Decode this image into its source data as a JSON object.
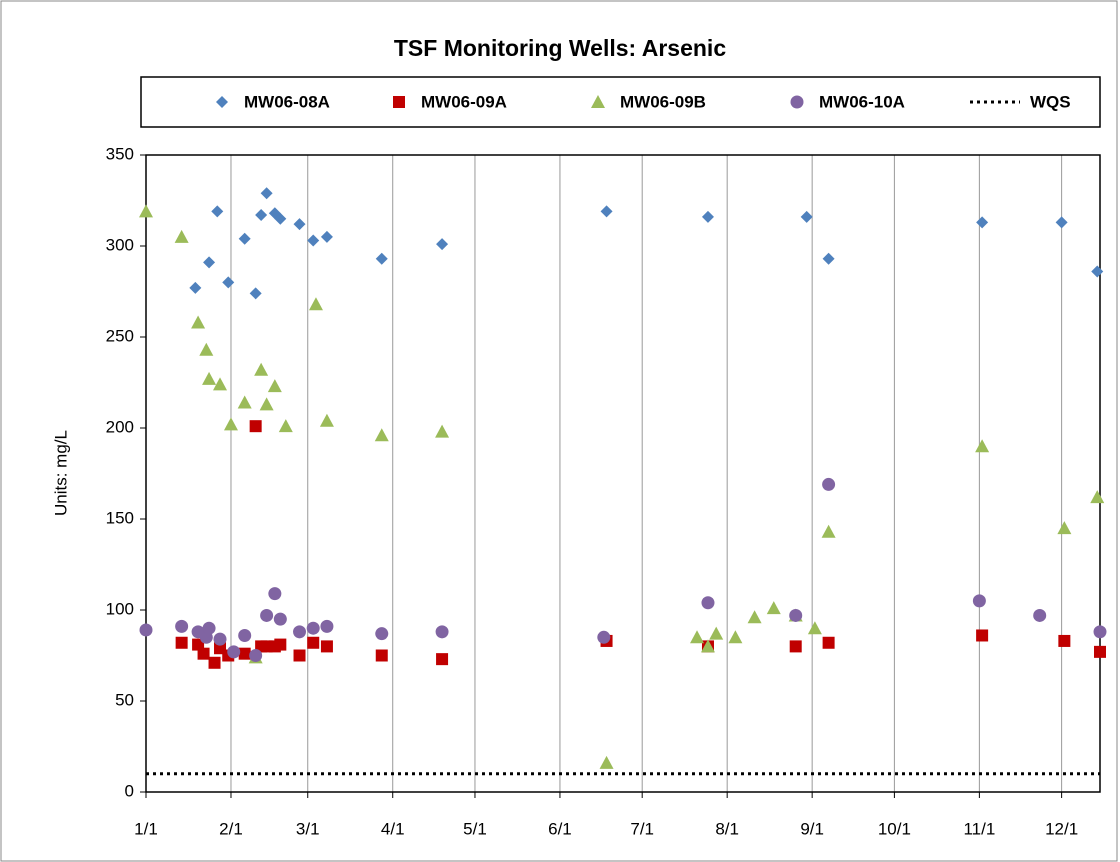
{
  "chart_data": {
    "type": "scatter",
    "title": "TSF Monitoring Wells: Arsenic",
    "y_label": "Units: mg/L",
    "xlim": [
      0,
      348
    ],
    "xticks": [
      {
        "value": 0,
        "label": "1/1"
      },
      {
        "value": 31,
        "label": "2/1"
      },
      {
        "value": 59,
        "label": "3/1"
      },
      {
        "value": 90,
        "label": "4/1"
      },
      {
        "value": 120,
        "label": "5/1"
      },
      {
        "value": 151,
        "label": "6/1"
      },
      {
        "value": 181,
        "label": "7/1"
      },
      {
        "value": 212,
        "label": "8/1"
      },
      {
        "value": 243,
        "label": "9/1"
      },
      {
        "value": 273,
        "label": "10/1"
      },
      {
        "value": 304,
        "label": "11/1"
      },
      {
        "value": 334,
        "label": "12/1"
      }
    ],
    "ylim": [
      0,
      350
    ],
    "yticks": [
      0,
      50,
      100,
      150,
      200,
      250,
      300,
      350
    ],
    "grid": "x",
    "series": [
      {
        "name": "MW06-08A",
        "color": "#4f81bd",
        "marker": "diamond",
        "x": [
          18,
          23,
          26,
          30,
          36,
          40,
          42,
          44,
          47,
          49,
          56,
          61,
          66,
          86,
          108,
          168,
          205,
          241,
          249,
          305,
          334,
          347
        ],
        "values": [
          277,
          291,
          319,
          280,
          304,
          274,
          317,
          329,
          318,
          315,
          312,
          303,
          305,
          293,
          301,
          319,
          316,
          316,
          293,
          313,
          313,
          286
        ]
      },
      {
        "name": "MW06-09A",
        "color": "#c00000",
        "marker": "square",
        "x": [
          13,
          19,
          21,
          25,
          27,
          30,
          36,
          40,
          42,
          44,
          47,
          49,
          56,
          61,
          66,
          86,
          108,
          168,
          205,
          237,
          249,
          305,
          335,
          348
        ],
        "values": [
          82,
          81,
          76,
          71,
          79,
          75,
          76,
          201,
          80,
          80,
          80,
          81,
          75,
          82,
          80,
          75,
          73,
          83,
          80,
          80,
          82,
          86,
          83,
          77
        ]
      },
      {
        "name": "MW06-09B",
        "color": "#9bbb59",
        "marker": "triangle",
        "x": [
          0,
          13,
          19,
          22,
          23,
          27,
          31,
          36,
          40,
          42,
          44,
          47,
          51,
          62,
          66,
          86,
          108,
          168,
          201,
          205,
          208,
          215,
          222,
          229,
          237,
          244,
          249,
          305,
          335,
          347
        ],
        "values": [
          319,
          305,
          258,
          243,
          227,
          224,
          202,
          214,
          74,
          232,
          213,
          223,
          201,
          268,
          204,
          196,
          198,
          16,
          85,
          80,
          87,
          85,
          96,
          101,
          97,
          90,
          143,
          190,
          145,
          162
        ]
      },
      {
        "name": "MW06-10A",
        "color": "#8064a2",
        "marker": "circle",
        "x": [
          0,
          13,
          19,
          22,
          23,
          27,
          32,
          36,
          40,
          44,
          47,
          49,
          56,
          61,
          66,
          86,
          108,
          167,
          205,
          237,
          249,
          304,
          326,
          348
        ],
        "values": [
          89,
          91,
          88,
          85,
          90,
          84,
          77,
          86,
          75,
          97,
          109,
          95,
          88,
          90,
          91,
          87,
          88,
          85,
          104,
          97,
          169,
          105,
          97,
          88
        ]
      }
    ],
    "reference_line": {
      "name": "WQS",
      "value": 10,
      "color": "#000000"
    }
  }
}
